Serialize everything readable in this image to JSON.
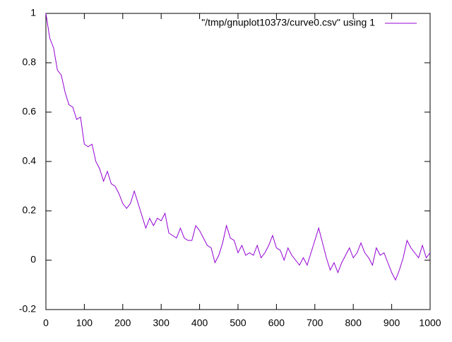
{
  "chart_data": {
    "type": "line",
    "x": [
      0,
      10,
      20,
      30,
      40,
      50,
      60,
      70,
      80,
      90,
      100,
      110,
      120,
      130,
      140,
      150,
      160,
      170,
      180,
      190,
      200,
      210,
      220,
      230,
      240,
      250,
      260,
      270,
      280,
      290,
      300,
      310,
      320,
      330,
      340,
      350,
      360,
      370,
      380,
      390,
      400,
      410,
      420,
      430,
      440,
      450,
      460,
      470,
      480,
      490,
      500,
      510,
      520,
      530,
      540,
      550,
      560,
      570,
      580,
      590,
      600,
      610,
      620,
      630,
      640,
      650,
      660,
      670,
      680,
      690,
      700,
      710,
      720,
      730,
      740,
      750,
      760,
      770,
      780,
      790,
      800,
      810,
      820,
      830,
      840,
      850,
      860,
      870,
      880,
      890,
      900,
      910,
      920,
      930,
      940,
      950,
      960,
      970,
      980,
      990,
      1000
    ],
    "series": [
      {
        "name": "\"/tmp/gnuplot10373/curve0.csv\" using 1",
        "color": "#9400d3",
        "values": [
          1.0,
          0.9,
          0.86,
          0.77,
          0.75,
          0.68,
          0.63,
          0.62,
          0.57,
          0.58,
          0.47,
          0.46,
          0.47,
          0.4,
          0.37,
          0.32,
          0.36,
          0.31,
          0.3,
          0.27,
          0.23,
          0.21,
          0.23,
          0.28,
          0.23,
          0.18,
          0.13,
          0.17,
          0.14,
          0.17,
          0.16,
          0.19,
          0.11,
          0.1,
          0.09,
          0.13,
          0.09,
          0.08,
          0.08,
          0.14,
          0.12,
          0.09,
          0.06,
          0.05,
          -0.01,
          0.02,
          0.07,
          0.14,
          0.09,
          0.08,
          0.03,
          0.06,
          0.02,
          0.03,
          0.02,
          0.06,
          0.01,
          0.03,
          0.06,
          0.1,
          0.05,
          0.04,
          0.0,
          0.05,
          0.02,
          0.0,
          -0.02,
          0.01,
          -0.02,
          0.03,
          0.08,
          0.13,
          0.07,
          0.01,
          -0.04,
          -0.01,
          -0.05,
          -0.01,
          0.02,
          0.05,
          0.01,
          0.03,
          0.07,
          0.03,
          0.01,
          -0.02,
          0.05,
          0.02,
          0.03,
          -0.01,
          -0.05,
          -0.08,
          -0.04,
          0.01,
          0.08,
          0.05,
          0.03,
          0.01,
          0.06,
          0.01,
          0.03
        ]
      }
    ],
    "xlim": [
      0,
      1000
    ],
    "xticks": [
      0,
      100,
      200,
      300,
      400,
      500,
      600,
      700,
      800,
      900,
      1000
    ],
    "ylim": [
      -0.2,
      1
    ],
    "yticks": [
      -0.2,
      0,
      0.2,
      0.4,
      0.6,
      0.8,
      1
    ],
    "legend": "top-right"
  }
}
